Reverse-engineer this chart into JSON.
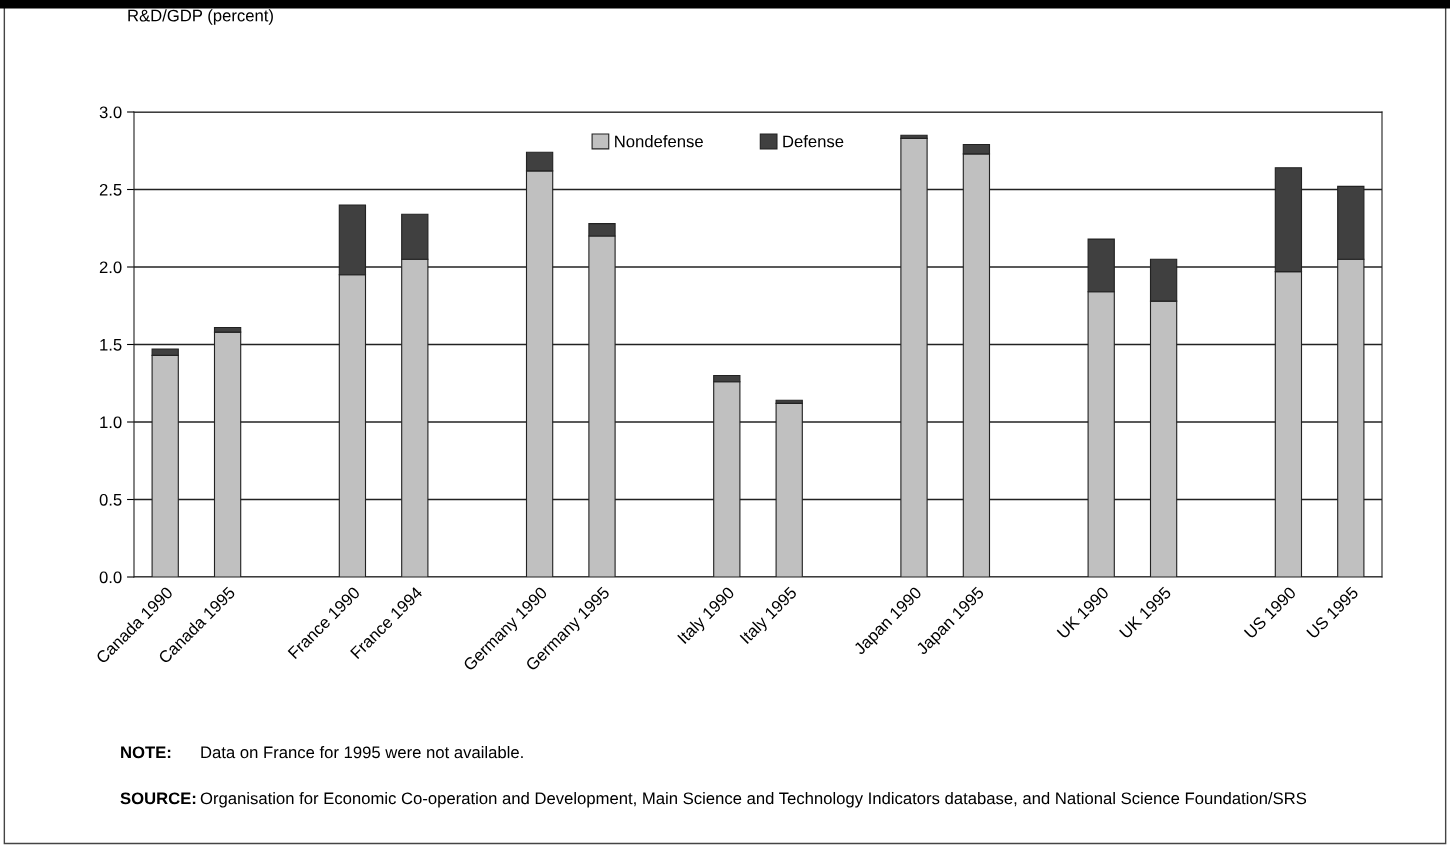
{
  "chart_data": {
    "type": "bar",
    "stacked": true,
    "ylabel": "R&D/GDP (percent)",
    "categories": [
      "Canada 1990",
      "Canada 1995",
      null,
      "France 1990",
      "France 1994",
      null,
      "Germany 1990",
      "Germany 1995",
      null,
      "Italy 1990",
      "Italy 1995",
      null,
      "Japan 1990",
      "Japan 1995",
      null,
      "UK 1990",
      "UK 1995",
      null,
      "US 1990",
      "US 1995"
    ],
    "series": [
      {
        "name": "Nondefense",
        "color": "#c0c0c0",
        "values": [
          1.43,
          1.58,
          null,
          1.95,
          2.05,
          null,
          2.62,
          2.2,
          null,
          1.26,
          1.12,
          null,
          2.83,
          2.73,
          null,
          1.84,
          1.78,
          null,
          1.97,
          2.05
        ]
      },
      {
        "name": "Defense",
        "color": "#404040",
        "values": [
          0.04,
          0.03,
          null,
          0.45,
          0.29,
          null,
          0.12,
          0.08,
          null,
          0.04,
          0.02,
          null,
          0.02,
          0.06,
          null,
          0.34,
          0.27,
          null,
          0.67,
          0.47
        ]
      }
    ],
    "ylim": [
      0,
      3
    ],
    "yticks": [
      {
        "value": 0,
        "label": "0.0"
      },
      {
        "value": 0.5,
        "label": "0.5"
      },
      {
        "value": 1,
        "label": "1.0"
      },
      {
        "value": 1.5,
        "label": "1.5"
      },
      {
        "value": 2,
        "label": "2.0"
      },
      {
        "value": 2.5,
        "label": "2.5"
      },
      {
        "value": 3,
        "label": "3.0"
      }
    ],
    "grid": "y",
    "legend": "top",
    "annotations": [
      "NOTE: Data on France for 1995 were not available.",
      "SOURCE: Organisation for Economic Co-operation and Development, Main Science and Technology Indicators database, and National Science Foundation/SRS"
    ]
  }
}
